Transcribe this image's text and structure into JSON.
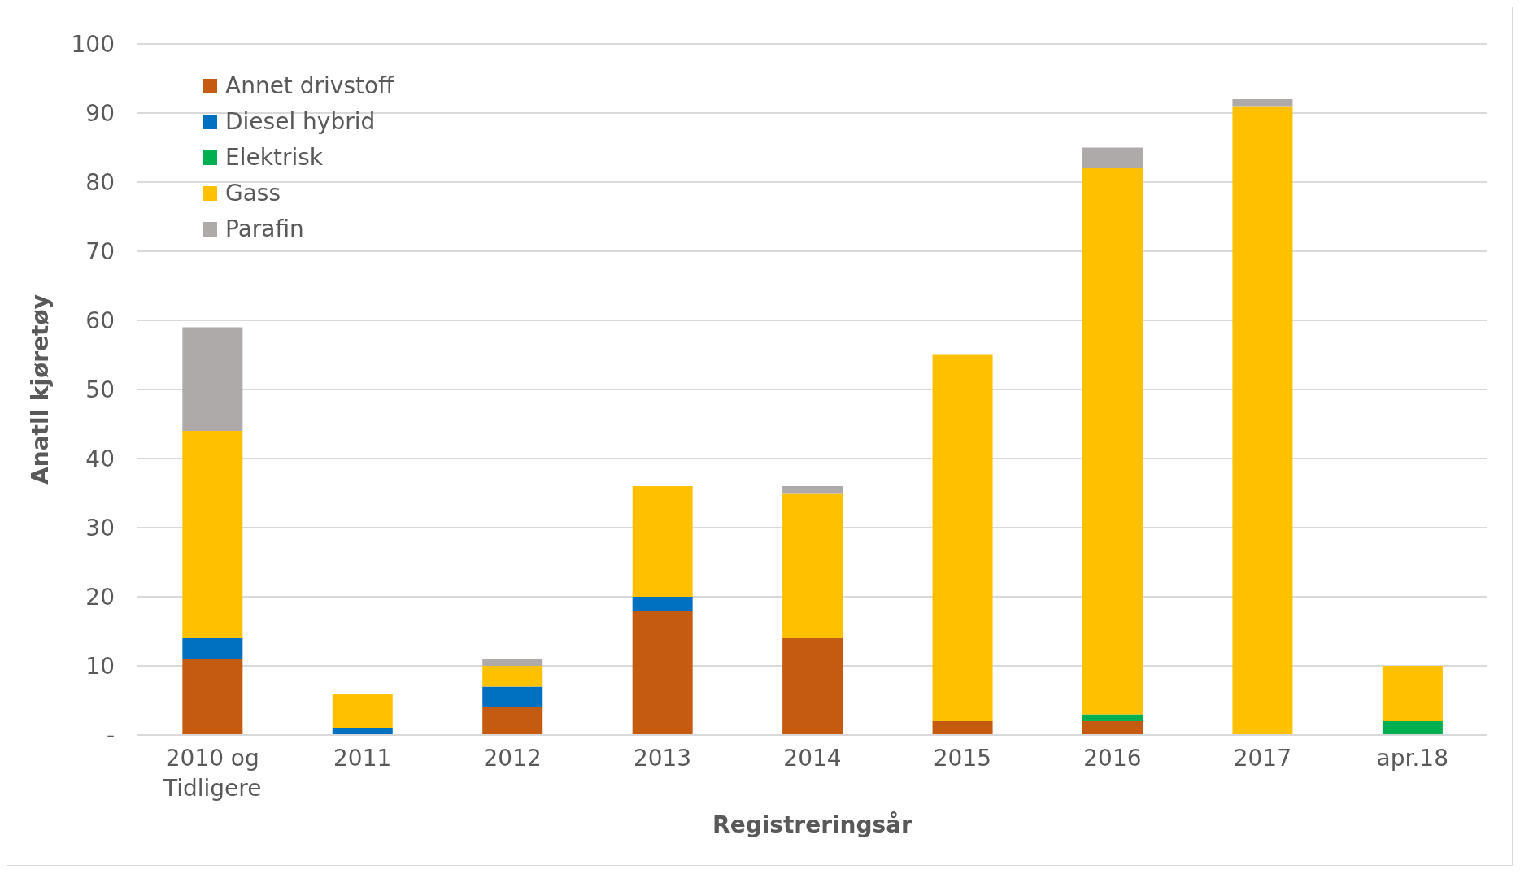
{
  "chart_data": {
    "type": "bar",
    "stacked": true,
    "xlabel": "Registreringsår",
    "ylabel": "Anatll kjøretøy",
    "categories": [
      "2010 og Tidligere",
      "2011",
      "2012",
      "2013",
      "2014",
      "2015",
      "2016",
      "2017",
      "apr.18"
    ],
    "series": [
      {
        "name": "Annet drivstoff",
        "color": "#c55a11",
        "values": [
          11,
          0,
          4,
          18,
          14,
          2,
          2,
          0,
          0
        ]
      },
      {
        "name": "Diesel hybrid",
        "color": "#0070c0",
        "values": [
          3,
          1,
          3,
          2,
          0,
          0,
          0,
          0,
          0
        ]
      },
      {
        "name": "Elektrisk",
        "color": "#00b050",
        "values": [
          0,
          0,
          0,
          0,
          0,
          0,
          1,
          0,
          2
        ]
      },
      {
        "name": "Gass",
        "color": "#ffc000",
        "values": [
          30,
          5,
          3,
          16,
          21,
          53,
          79,
          91,
          8
        ]
      },
      {
        "name": "Parafin",
        "color": "#aeaaaa",
        "values": [
          15,
          0,
          1,
          0,
          1,
          0,
          3,
          1,
          0
        ]
      }
    ],
    "ylim": [
      0,
      100
    ],
    "yticks": [
      {
        "value": 0,
        "label": "-"
      },
      10,
      20,
      30,
      40,
      50,
      60,
      70,
      80,
      90,
      100
    ],
    "grid": "y",
    "legend": "top left"
  }
}
